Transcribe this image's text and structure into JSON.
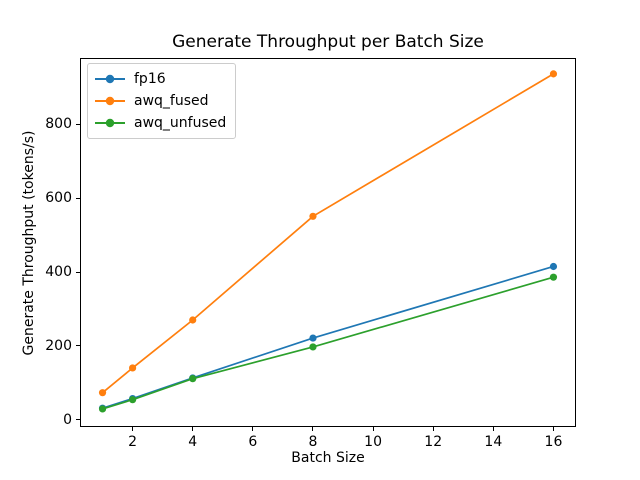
{
  "chart_data": {
    "type": "line",
    "title": "Generate Throughput per Batch Size",
    "xlabel": "Batch Size",
    "ylabel": "Generate Throughput (tokens/s)",
    "x": [
      1,
      2,
      4,
      8,
      16
    ],
    "series": [
      {
        "name": "fp16",
        "color": "#1f77b4",
        "values": [
          31,
          57,
          113,
          221,
          415
        ]
      },
      {
        "name": "awq_fused",
        "color": "#ff7f0e",
        "values": [
          73,
          140,
          270,
          551,
          937
        ]
      },
      {
        "name": "awq_unfused",
        "color": "#2ca02c",
        "values": [
          29,
          54,
          111,
          197,
          386
        ]
      }
    ],
    "xticks": [
      2,
      4,
      6,
      8,
      10,
      12,
      14,
      16
    ],
    "yticks": [
      0,
      200,
      400,
      600,
      800
    ],
    "xlim": [
      0.25,
      16.75
    ],
    "ylim": [
      -20,
      980
    ],
    "grid": false,
    "legend_position": "upper-left",
    "marker": "o",
    "spine_color": "#000000",
    "background_color": "#ffffff"
  }
}
